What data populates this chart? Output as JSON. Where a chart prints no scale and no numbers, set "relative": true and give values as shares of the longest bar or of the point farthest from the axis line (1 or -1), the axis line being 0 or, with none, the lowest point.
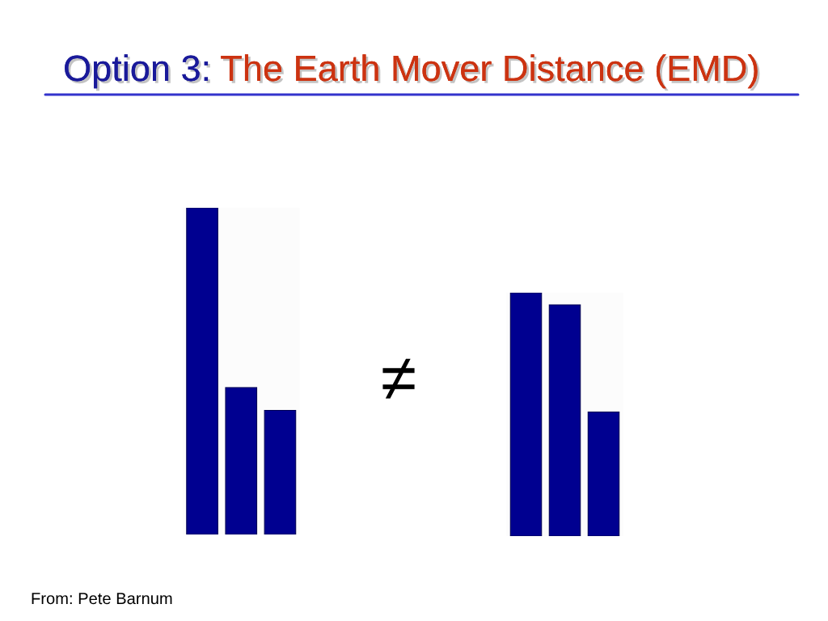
{
  "chart_data": [
    {
      "type": "bar",
      "title": "Option 3: The Earth Mover Distance (EMD)",
      "categories": [
        null,
        null,
        null
      ],
      "values": [
        1,
        0.45,
        0.38
      ],
      "color": "#000090",
      "relative": true,
      "annotations": [
        "≠",
        "From: Pete Barnum"
      ]
    },
    {
      "type": "bar",
      "categories": [
        null,
        null,
        null
      ],
      "values": [
        1,
        0.95,
        0.51
      ],
      "color": "#000090",
      "relative": true
    }
  ]
}
